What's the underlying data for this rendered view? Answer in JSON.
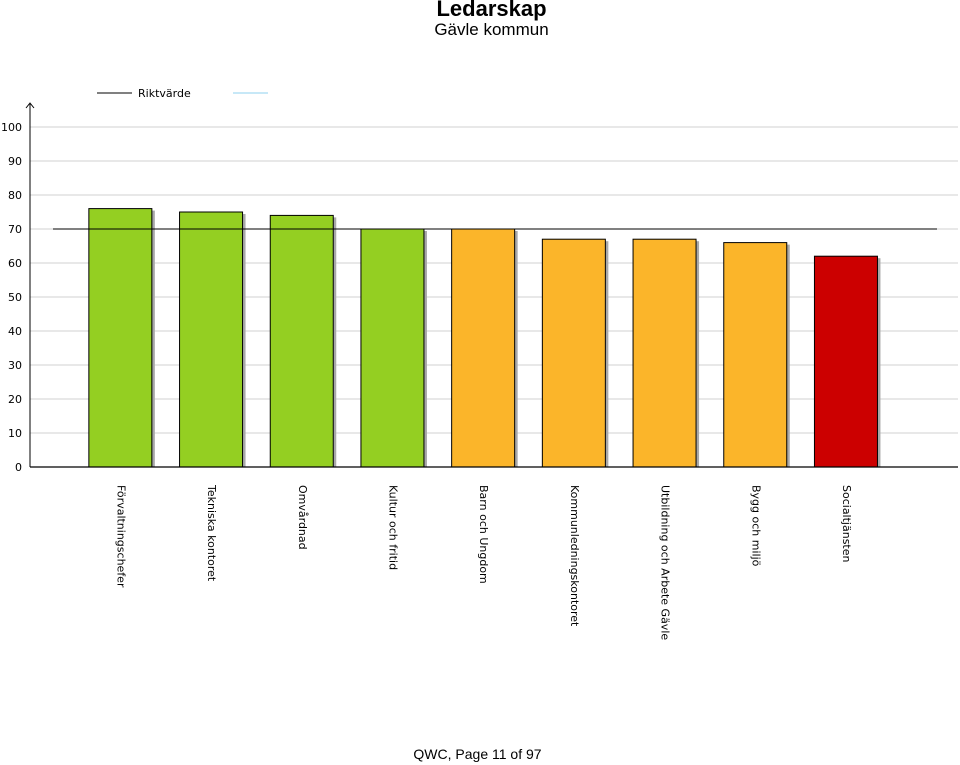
{
  "header": {
    "title": "Ledarskap",
    "subtitle": "Gävle kommun"
  },
  "footer": {
    "page_text": "QWC, Page 11 of 97"
  },
  "colors": {
    "green": "#94cf22",
    "orange": "#fbb52a",
    "red": "#cc0000",
    "reference_line": "#000000",
    "legend_second_line": "#8fd0ef",
    "grid": "#d0d0d0"
  },
  "chart_data": {
    "type": "bar",
    "title": "Ledarskap",
    "subtitle": "Gävle kommun",
    "xlabel": "",
    "ylabel": "",
    "ylim": [
      0,
      100
    ],
    "yticks": [
      0,
      10,
      20,
      30,
      40,
      50,
      60,
      70,
      80,
      90,
      100
    ],
    "grid": true,
    "legend_position": "top-left",
    "legend": [
      {
        "label": "Riktvärde",
        "color": "#000000"
      },
      {
        "label": "",
        "color": "#8fd0ef"
      }
    ],
    "reference_line": {
      "name": "Riktvärde",
      "value": 70
    },
    "categories": [
      "Förvaltningschefer",
      "Tekniska kontoret",
      "Omvårdnad",
      "Kultur och fritid",
      "Barn och Ungdom",
      "Kommunledningskontoret",
      "Utbildning och Arbete Gävle",
      "Bygg och miljö",
      "Socialtjänsten"
    ],
    "values": [
      76,
      75,
      74,
      70,
      70,
      67,
      67,
      66,
      62
    ],
    "bar_colors": [
      "#94cf22",
      "#94cf22",
      "#94cf22",
      "#94cf22",
      "#fbb52a",
      "#fbb52a",
      "#fbb52a",
      "#fbb52a",
      "#cc0000"
    ]
  }
}
